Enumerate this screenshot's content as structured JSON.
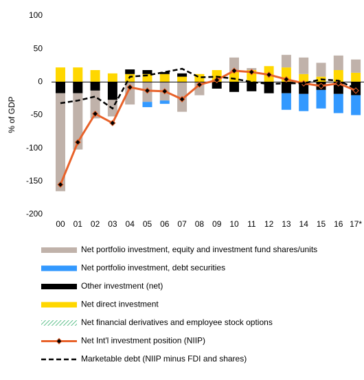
{
  "chart_data": {
    "type": "bar",
    "stacked": true,
    "ylabel": "% of GDP",
    "categories": [
      "00",
      "01",
      "02",
      "03",
      "04",
      "05",
      "06",
      "07",
      "08",
      "09",
      "10",
      "11",
      "12",
      "13",
      "14",
      "15",
      "16",
      "17*"
    ],
    "ylim": [
      -200,
      100
    ],
    "yticks": [
      -200,
      -150,
      -100,
      -50,
      0,
      50,
      100
    ],
    "grid": false,
    "series": [
      {
        "name": "Net portfolio investment, equity and investment fund shares/units",
        "type": "bar",
        "color": "#c0b2aa",
        "values": [
          -148,
          -85,
          -42,
          -25,
          -34,
          -30,
          -28,
          -45,
          -20,
          0,
          22,
          3,
          0,
          19,
          25,
          21,
          22,
          20
        ]
      },
      {
        "name": "Net portfolio investment, debt securities",
        "type": "bar",
        "color": "#3399ff",
        "values": [
          0,
          0,
          0,
          0,
          0,
          -8,
          -5,
          0,
          0,
          0,
          0,
          0,
          0,
          -25,
          -26,
          -28,
          -29,
          -30
        ]
      },
      {
        "name": "Other investment (net)",
        "type": "bar",
        "color": "#000000",
        "values": [
          -17,
          -17,
          -13,
          -27,
          7,
          6,
          3,
          5,
          0,
          -10,
          -15,
          -14,
          -17,
          -17,
          -18,
          -12,
          -18,
          -20
        ]
      },
      {
        "name": "Net direct investment",
        "type": "bar",
        "color": "#ffd700",
        "values": [
          22,
          22,
          18,
          13,
          12,
          12,
          12,
          8,
          12,
          18,
          15,
          18,
          24,
          22,
          12,
          8,
          18,
          14
        ]
      },
      {
        "name": "Net financial derivatives and employee stock options",
        "type": "bar",
        "color": "#8fd3b0",
        "hatch": true,
        "values": [
          0,
          0,
          0,
          0,
          0,
          0,
          0,
          0,
          0,
          0,
          0,
          0,
          0,
          0,
          0,
          0,
          0,
          0
        ]
      },
      {
        "name": "Net Int'l investment position (NIIP)",
        "type": "line",
        "color": "#e8622a",
        "marker": "diamond",
        "values": [
          -155,
          -91,
          -48,
          -62,
          -8,
          -13,
          -14,
          -26,
          -4,
          3,
          17,
          15,
          11,
          4,
          -2,
          -6,
          -2,
          -13
        ]
      },
      {
        "name": "Marketable debt (NIIP minus FDI and shares)",
        "type": "line",
        "color": "#000000",
        "dashed": true,
        "values": [
          -32,
          -28,
          -22,
          -40,
          8,
          10,
          15,
          20,
          7,
          8,
          5,
          0,
          -3,
          -2,
          -2,
          4,
          2,
          -10
        ]
      }
    ]
  }
}
